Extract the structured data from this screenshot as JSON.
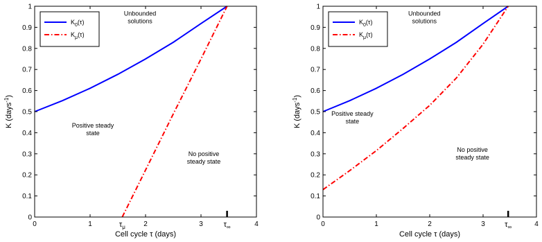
{
  "chart_data": [
    {
      "type": "line",
      "xlabel_main": "Cell cycle  ",
      "xlabel_sym": "τ",
      "xlabel_unit": " (days)",
      "ylabel_main": "K (days",
      "ylabel_exp": "-1",
      "ylabel_close": ")",
      "xlim": [
        0,
        4
      ],
      "ylim": [
        0,
        1
      ],
      "xticks": [
        "0",
        "1",
        "2",
        "3",
        "4"
      ],
      "yticks": [
        "0",
        "0.1",
        "0.2",
        "0.3",
        "0.4",
        "0.5",
        "0.6",
        "0.7",
        "0.8",
        "0.9",
        "1"
      ],
      "legend": {
        "placement": "top-left",
        "entries": [
          {
            "sym": "K",
            "sub": "0",
            "arg": "(τ)",
            "color": "#0000ff",
            "style": "solid"
          },
          {
            "sym": "K",
            "sub": "μ",
            "arg": "(τ)",
            "color": "#ff0000",
            "style": "dashdot"
          }
        ]
      },
      "series": [
        {
          "style": "solid",
          "color": "#0000ff",
          "x": [
            0,
            0.5,
            1,
            1.5,
            2,
            2.5,
            3,
            3.47
          ],
          "y": [
            0.5,
            0.552,
            0.611,
            0.677,
            0.75,
            0.829,
            0.918,
            1.0
          ]
        },
        {
          "style": "dashdot",
          "color": "#ff0000",
          "x": [
            1.58,
            2,
            2.5,
            3,
            3.47
          ],
          "y": [
            0.0,
            0.223,
            0.489,
            0.75,
            1.0
          ]
        }
      ],
      "annotations": [
        {
          "lines": [
            "Unbounded",
            "solutions"
          ],
          "x": 1.9,
          "y": 0.955
        },
        {
          "lines": [
            "Positive steady",
            "state"
          ],
          "x": 1.05,
          "y": 0.425
        },
        {
          "lines": [
            "No positive",
            "steady state"
          ],
          "x": 3.05,
          "y": 0.29
        }
      ],
      "markers": [
        {
          "sym": "τ",
          "sub": "μ",
          "x": 1.58
        },
        {
          "sym": "τ",
          "sub": "∞",
          "x": 3.47
        }
      ]
    },
    {
      "type": "line",
      "xlabel_main": "Cell cycle  ",
      "xlabel_sym": "τ",
      "xlabel_unit": " (days)",
      "ylabel_main": "K (days",
      "ylabel_exp": "-1",
      "ylabel_close": ")",
      "xlim": [
        0,
        4
      ],
      "ylim": [
        0,
        1
      ],
      "xticks": [
        "0",
        "1",
        "2",
        "3",
        "4"
      ],
      "yticks": [
        "0",
        "0.1",
        "0.2",
        "0.3",
        "0.4",
        "0.5",
        "0.6",
        "0.7",
        "0.8",
        "0.9",
        "1"
      ],
      "legend": {
        "placement": "top-left",
        "entries": [
          {
            "sym": "K",
            "sub": "0",
            "arg": "(τ)",
            "color": "#0000ff",
            "style": "solid"
          },
          {
            "sym": "K",
            "sub": "μ",
            "arg": "(τ)",
            "color": "#ff0000",
            "style": "dashdot"
          }
        ]
      },
      "series": [
        {
          "style": "solid",
          "color": "#0000ff",
          "x": [
            0,
            0.5,
            1,
            1.5,
            2,
            2.5,
            3,
            3.47
          ],
          "y": [
            0.5,
            0.552,
            0.611,
            0.677,
            0.75,
            0.829,
            0.918,
            1.0
          ]
        },
        {
          "style": "dashdot",
          "color": "#ff0000",
          "x": [
            0,
            0.5,
            1,
            1.5,
            2,
            2.5,
            3,
            3.47
          ],
          "y": [
            0.13,
            0.22,
            0.315,
            0.42,
            0.53,
            0.66,
            0.82,
            1.0
          ]
        }
      ],
      "annotations": [
        {
          "lines": [
            "Unbounded",
            "solutions"
          ],
          "x": 1.9,
          "y": 0.955
        },
        {
          "lines": [
            "Positive steady",
            "state"
          ],
          "x": 0.55,
          "y": 0.48
        },
        {
          "lines": [
            "No positive",
            "steady state"
          ],
          "x": 2.8,
          "y": 0.31
        }
      ],
      "markers": [
        {
          "sym": "τ",
          "sub": "∞",
          "x": 3.47
        }
      ]
    }
  ]
}
